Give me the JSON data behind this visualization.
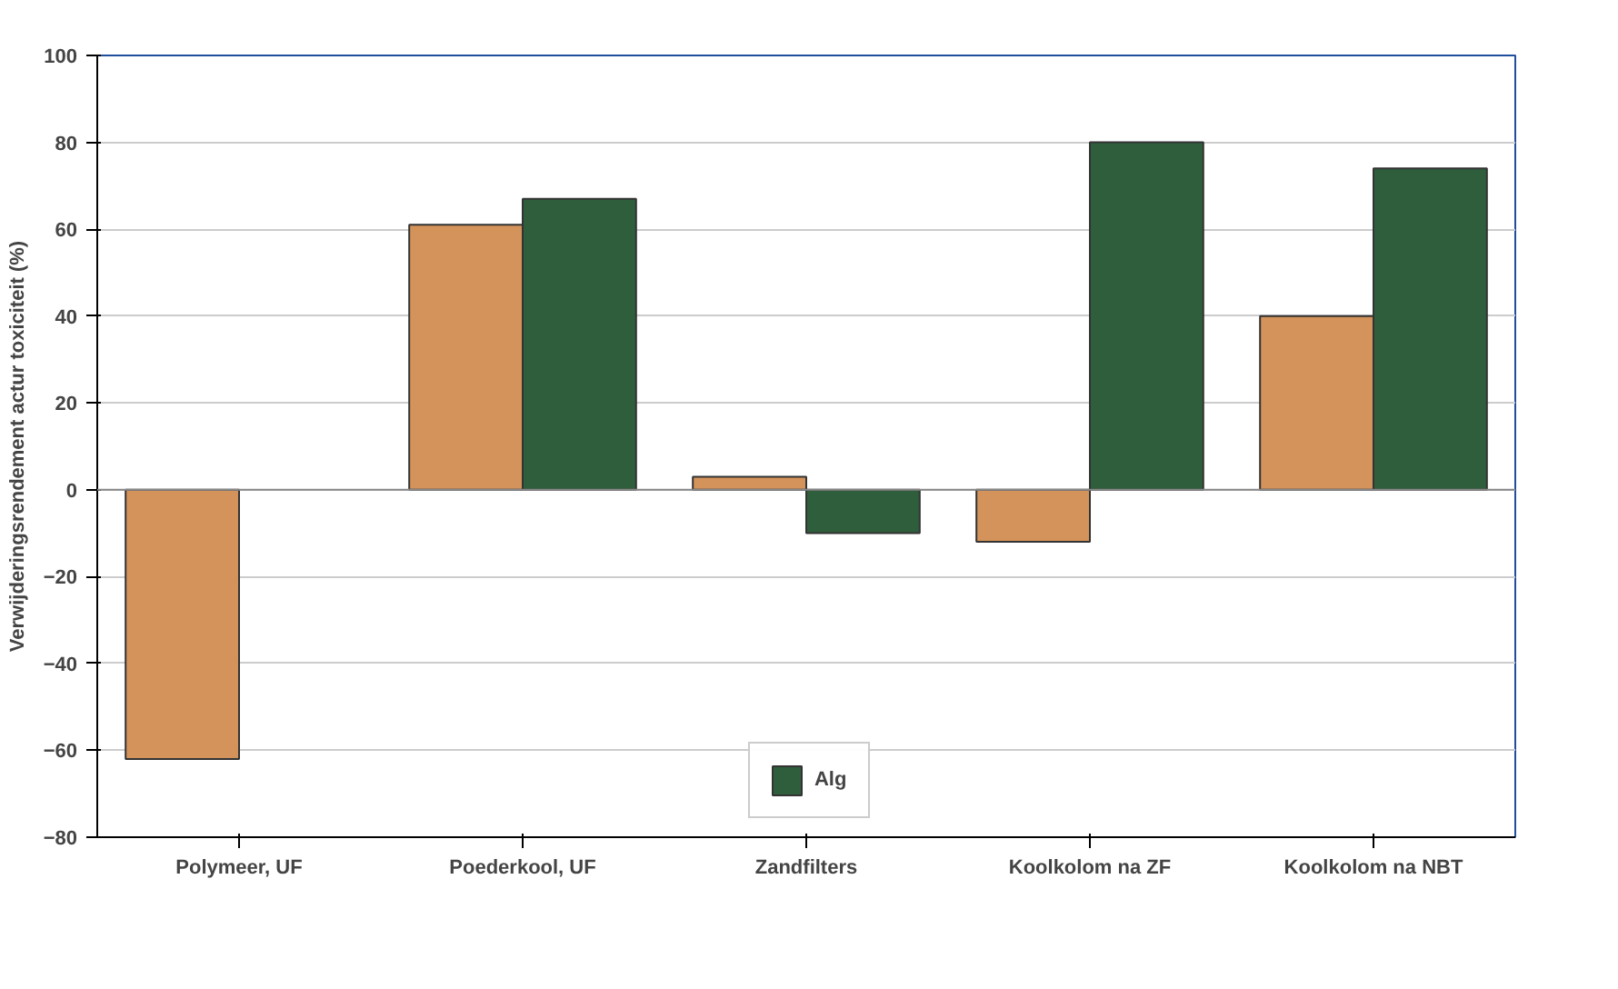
{
  "chart_data": {
    "type": "bar",
    "ylabel": "Verwijderingsrendement actur toxiciteit (%)",
    "categories": [
      "Polymeer, UF",
      "Poederkool, UF",
      "Zandfilters",
      "Koolkolom na ZF",
      "Koolkolom na NBT"
    ],
    "series": [
      {
        "color": "#d4935a",
        "values": [
          -62,
          61,
          3,
          -12,
          40
        ]
      },
      {
        "name": "Alg",
        "color": "#2f5e3c",
        "values": [
          null,
          67,
          -10,
          80,
          74
        ]
      }
    ],
    "ylim": [
      -80,
      100
    ],
    "yticks": [
      -80,
      -60,
      -40,
      -20,
      0,
      20,
      40,
      60,
      80,
      100
    ],
    "grid": "y",
    "legend": "bottom"
  }
}
